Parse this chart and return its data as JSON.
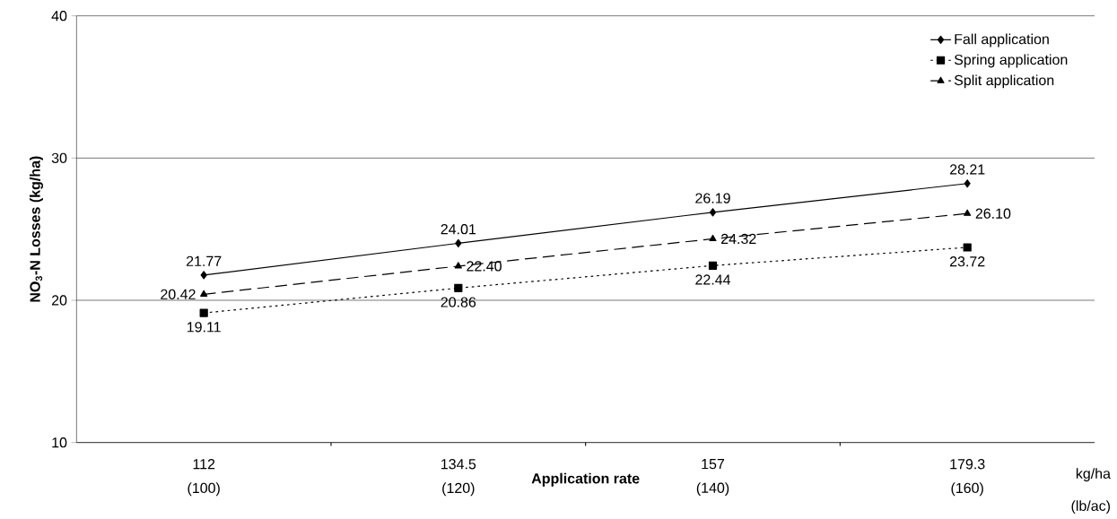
{
  "chart_data": {
    "type": "line",
    "xlabel": "Application rate",
    "ylabel": "NO$_{3}$-N Losses (kg/ha)",
    "categories": [
      "112",
      "134.5",
      "157",
      "179.3"
    ],
    "annotations": [
      "(100)",
      "(120)",
      "(140)",
      "(160)",
      "kg/ha",
      "(lb/ac)"
    ],
    "ylim": [
      10,
      40
    ],
    "yticks": [
      10,
      20,
      30,
      40
    ],
    "grid": "y",
    "legend": "top right",
    "series": [
      {
        "name": "Fall application",
        "color": "#000000",
        "marker": "diamond",
        "line_style": "solid",
        "values": [
          21.77,
          24.01,
          26.19,
          28.21
        ],
        "value_labels": [
          "21.77",
          "24.01",
          "26.19",
          "28.21"
        ]
      },
      {
        "name": "Spring application",
        "color": "#000000",
        "marker": "square",
        "line_style": "dotted",
        "values": [
          19.11,
          20.86,
          22.44,
          23.72
        ],
        "value_labels": [
          "19.11",
          "20.86",
          "22.44",
          "23.72"
        ]
      },
      {
        "name": "Split application",
        "color": "#000000",
        "marker": "triangle",
        "line_style": "dashed",
        "values": [
          20.42,
          22.4,
          24.32,
          26.1
        ],
        "value_labels": [
          "20.42",
          "22.40",
          "24.32",
          "26.10"
        ]
      }
    ]
  }
}
